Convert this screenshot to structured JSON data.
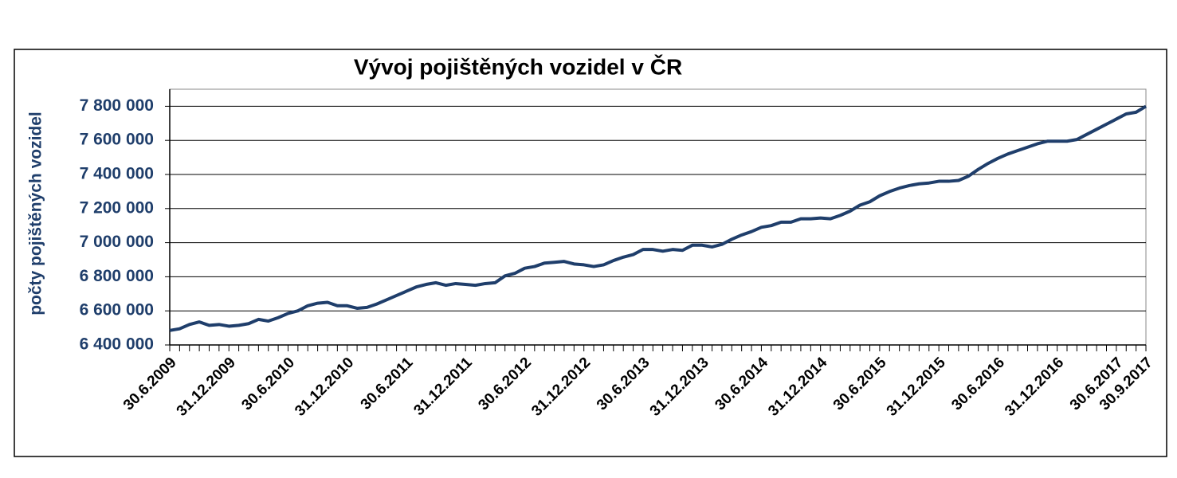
{
  "chart_data": {
    "type": "line",
    "title": "Vývoj pojištěných vozidel v ČR",
    "y_label": "počty pojištěných vozidel",
    "color": "#1f3e6b",
    "grid": true,
    "categories": [
      "30.6.2009",
      null,
      null,
      null,
      null,
      null,
      "31.12.2009",
      null,
      null,
      null,
      null,
      null,
      "30.6.2010",
      null,
      null,
      null,
      null,
      null,
      "31.12.2010",
      null,
      null,
      null,
      null,
      null,
      "30.6.2011",
      null,
      null,
      null,
      null,
      null,
      "31.12.2011",
      null,
      null,
      null,
      null,
      null,
      "30.6.2012",
      null,
      null,
      null,
      null,
      null,
      "31.12.2012",
      null,
      null,
      null,
      null,
      null,
      "30.6.2013",
      null,
      null,
      null,
      null,
      null,
      "31.12.2013",
      null,
      null,
      null,
      null,
      null,
      "30.6.2014",
      null,
      null,
      null,
      null,
      null,
      "31.12.2014",
      null,
      null,
      null,
      null,
      null,
      "30.6.2015",
      null,
      null,
      null,
      null,
      null,
      "31.12.2015",
      null,
      null,
      null,
      null,
      null,
      "30.6.2016",
      null,
      null,
      null,
      null,
      null,
      "31.12.2016",
      null,
      null,
      null,
      null,
      null,
      "30.6.2017",
      null,
      null,
      "30.9.2017"
    ],
    "values": [
      6485000,
      6495000,
      6520000,
      6535000,
      6515000,
      6520000,
      6510000,
      6515000,
      6525000,
      6550000,
      6540000,
      6560000,
      6585000,
      6600000,
      6630000,
      6645000,
      6650000,
      6630000,
      6630000,
      6615000,
      6620000,
      6640000,
      6665000,
      6690000,
      6715000,
      6740000,
      6755000,
      6765000,
      6750000,
      6760000,
      6755000,
      6750000,
      6760000,
      6765000,
      6805000,
      6820000,
      6850000,
      6860000,
      6880000,
      6885000,
      6890000,
      6875000,
      6870000,
      6860000,
      6870000,
      6895000,
      6915000,
      6930000,
      6960000,
      6960000,
      6950000,
      6960000,
      6955000,
      6985000,
      6985000,
      6975000,
      6990000,
      7020000,
      7045000,
      7065000,
      7090000,
      7100000,
      7120000,
      7120000,
      7140000,
      7140000,
      7145000,
      7140000,
      7160000,
      7185000,
      7220000,
      7240000,
      7275000,
      7300000,
      7320000,
      7335000,
      7345000,
      7350000,
      7360000,
      7360000,
      7365000,
      7390000,
      7430000,
      7465000,
      7495000,
      7520000,
      7540000,
      7560000,
      7580000,
      7595000,
      7595000,
      7595000,
      7605000,
      7635000,
      7665000,
      7695000,
      7725000,
      7755000,
      7765000,
      7800000
    ],
    "ylim": [
      6400000,
      7900000
    ],
    "yticks": [
      {
        "value": 6400000,
        "label": "6 400 000"
      },
      {
        "value": 6600000,
        "label": "6 600 000"
      },
      {
        "value": 6800000,
        "label": "6 800 000"
      },
      {
        "value": 7000000,
        "label": "7 000 000"
      },
      {
        "value": 7200000,
        "label": "7 200 000"
      },
      {
        "value": 7400000,
        "label": "7 400 000"
      },
      {
        "value": 7600000,
        "label": "7 600 000"
      },
      {
        "value": 7800000,
        "label": "7 800 000"
      }
    ]
  }
}
